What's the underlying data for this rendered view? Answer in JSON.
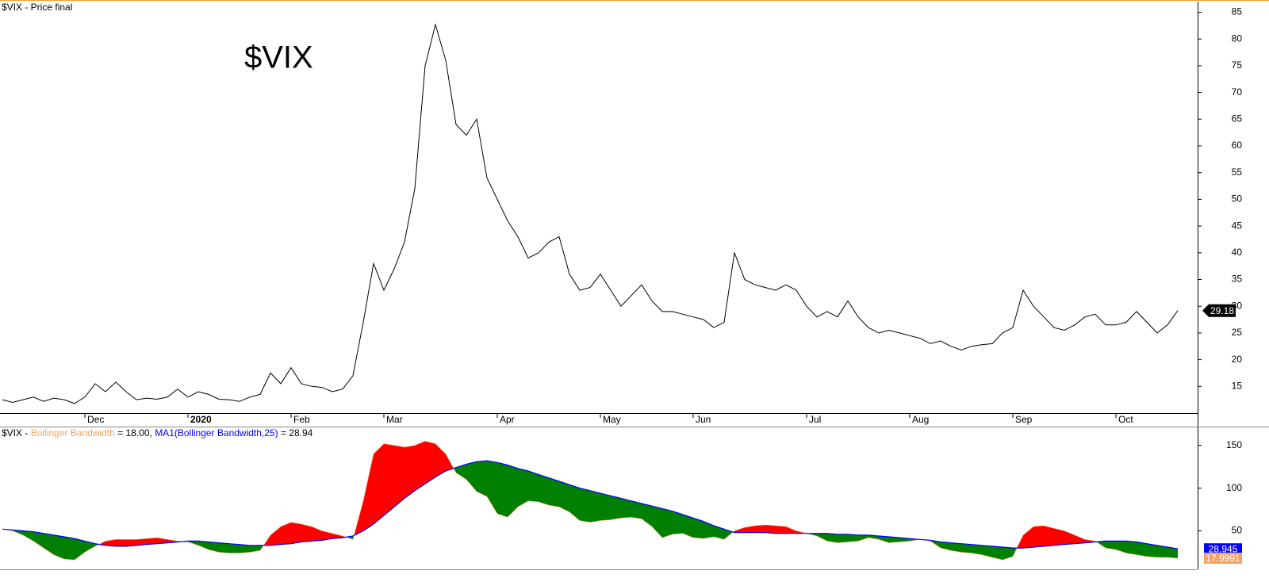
{
  "chart_data": [
    {
      "type": "line",
      "panel_label": "$VIX - Price final",
      "title": "$VIX",
      "title_color": "#5a9a3a",
      "color": "#000000",
      "badge_color": "#000000",
      "categories": [
        null,
        null,
        null,
        null,
        null,
        null,
        null,
        null,
        "Dec",
        null,
        null,
        null,
        null,
        null,
        null,
        null,
        null,
        null,
        "2020",
        null,
        null,
        null,
        null,
        null,
        null,
        null,
        null,
        null,
        "Feb",
        null,
        null,
        null,
        null,
        null,
        null,
        null,
        null,
        "Mar",
        null,
        null,
        null,
        null,
        null,
        null,
        null,
        null,
        null,
        null,
        "Apr",
        null,
        null,
        null,
        null,
        null,
        null,
        null,
        null,
        null,
        "May",
        null,
        null,
        null,
        null,
        null,
        null,
        null,
        null,
        "Jun",
        null,
        null,
        null,
        null,
        null,
        null,
        null,
        null,
        null,
        null,
        "Jul",
        null,
        null,
        null,
        null,
        null,
        null,
        null,
        null,
        null,
        "Aug",
        null,
        null,
        null,
        null,
        null,
        null,
        null,
        null,
        null,
        "Sep",
        null,
        null,
        null,
        null,
        null,
        null,
        null,
        null,
        null,
        "Oct",
        null,
        null,
        null,
        null,
        null,
        null
      ],
      "values": [
        12.5,
        12,
        12.5,
        13,
        12.2,
        12.8,
        12.5,
        11.8,
        13,
        15.5,
        14,
        15.8,
        14,
        12.5,
        12.8,
        12.6,
        13,
        14.5,
        13,
        14,
        13.5,
        12.6,
        12.5,
        12.2,
        13,
        13.5,
        17.5,
        15.5,
        18.5,
        15.5,
        15,
        14.8,
        14,
        14.5,
        17,
        27,
        38,
        33,
        37,
        42,
        52,
        75,
        82.7,
        76,
        64,
        62,
        65,
        54,
        50,
        46,
        43,
        39,
        40,
        42,
        43,
        36,
        33,
        33.5,
        36,
        33,
        30,
        32,
        34,
        31,
        29,
        29,
        28.5,
        28,
        27.5,
        26,
        27,
        40,
        35,
        34,
        33.5,
        33,
        34,
        33,
        30,
        28,
        29,
        28,
        31,
        28,
        26,
        25,
        25.5,
        25,
        24.5,
        24,
        23,
        23.5,
        22.5,
        21.8,
        22.5,
        22.8,
        23,
        25,
        26,
        33,
        30,
        28,
        26,
        25.5,
        26.5,
        28,
        28.5,
        26.5,
        26.5,
        27,
        29,
        27,
        25,
        26.5,
        29.18
      ],
      "ylim": [
        10,
        87
      ],
      "yticks": [
        15,
        20,
        25,
        30,
        35,
        40,
        45,
        50,
        55,
        60,
        65,
        70,
        75,
        80,
        85
      ]
    },
    {
      "type": "band-area",
      "panel_label": "$VIX -",
      "up_color": "#ff0000",
      "down_color": "#008000",
      "series": [
        {
          "name": "Bollinger Bandwidth",
          "color": "#f4a460",
          "header_value": "= 18.00,",
          "values": [
            52,
            50,
            45,
            38,
            30,
            22,
            17,
            16,
            25,
            32,
            38,
            40,
            40,
            40,
            41,
            42,
            40,
            38,
            37,
            33,
            28,
            25,
            24,
            24,
            25,
            27,
            45,
            55,
            60,
            58,
            55,
            50,
            47,
            44,
            40,
            85,
            140,
            152,
            150,
            148,
            150,
            155,
            152,
            140,
            118,
            110,
            96,
            90,
            70,
            66,
            78,
            85,
            84,
            80,
            78,
            72,
            62,
            60,
            62,
            63,
            65,
            66,
            64,
            55,
            42,
            46,
            47,
            42,
            41,
            43,
            40,
            50,
            54,
            56,
            57,
            56,
            55,
            50,
            47,
            44,
            38,
            36,
            37,
            38,
            42,
            40,
            36,
            37,
            38,
            40,
            38,
            30,
            27,
            25,
            24,
            22,
            19,
            16,
            20,
            45,
            55,
            56,
            53,
            50,
            45,
            40,
            38,
            30,
            28,
            24,
            22,
            20,
            19,
            19,
            17.9991
          ]
        },
        {
          "name": "MA1(Bollinger Bandwidth,25)",
          "color": "#0000ff",
          "header_value": "= 28.94",
          "values": [
            52,
            51,
            50,
            49,
            47,
            45,
            43,
            41,
            38,
            35,
            33,
            32,
            32,
            33,
            34,
            35,
            36,
            37,
            38,
            38,
            37,
            36,
            35,
            34,
            33,
            33,
            33,
            34,
            35,
            37,
            38,
            39,
            41,
            42,
            44,
            50,
            58,
            68,
            78,
            88,
            97,
            105,
            113,
            120,
            124,
            128,
            131,
            132,
            130,
            127,
            123,
            120,
            116,
            112,
            108,
            104,
            100,
            97,
            94,
            91,
            88,
            85,
            82,
            79,
            76,
            73,
            69,
            65,
            61,
            56,
            52,
            48,
            48,
            48,
            48,
            47,
            47,
            47,
            47,
            47,
            47,
            46,
            46,
            45,
            45,
            44,
            43,
            42,
            41,
            40,
            39,
            37,
            36,
            35,
            34,
            33,
            32,
            31,
            30,
            30,
            31,
            32,
            33,
            34,
            35,
            36,
            37,
            38,
            38,
            38,
            37,
            35,
            33,
            31,
            28.945
          ]
        }
      ],
      "ylim": [
        5,
        172
      ],
      "yticks": [
        50,
        100,
        150
      ]
    }
  ]
}
